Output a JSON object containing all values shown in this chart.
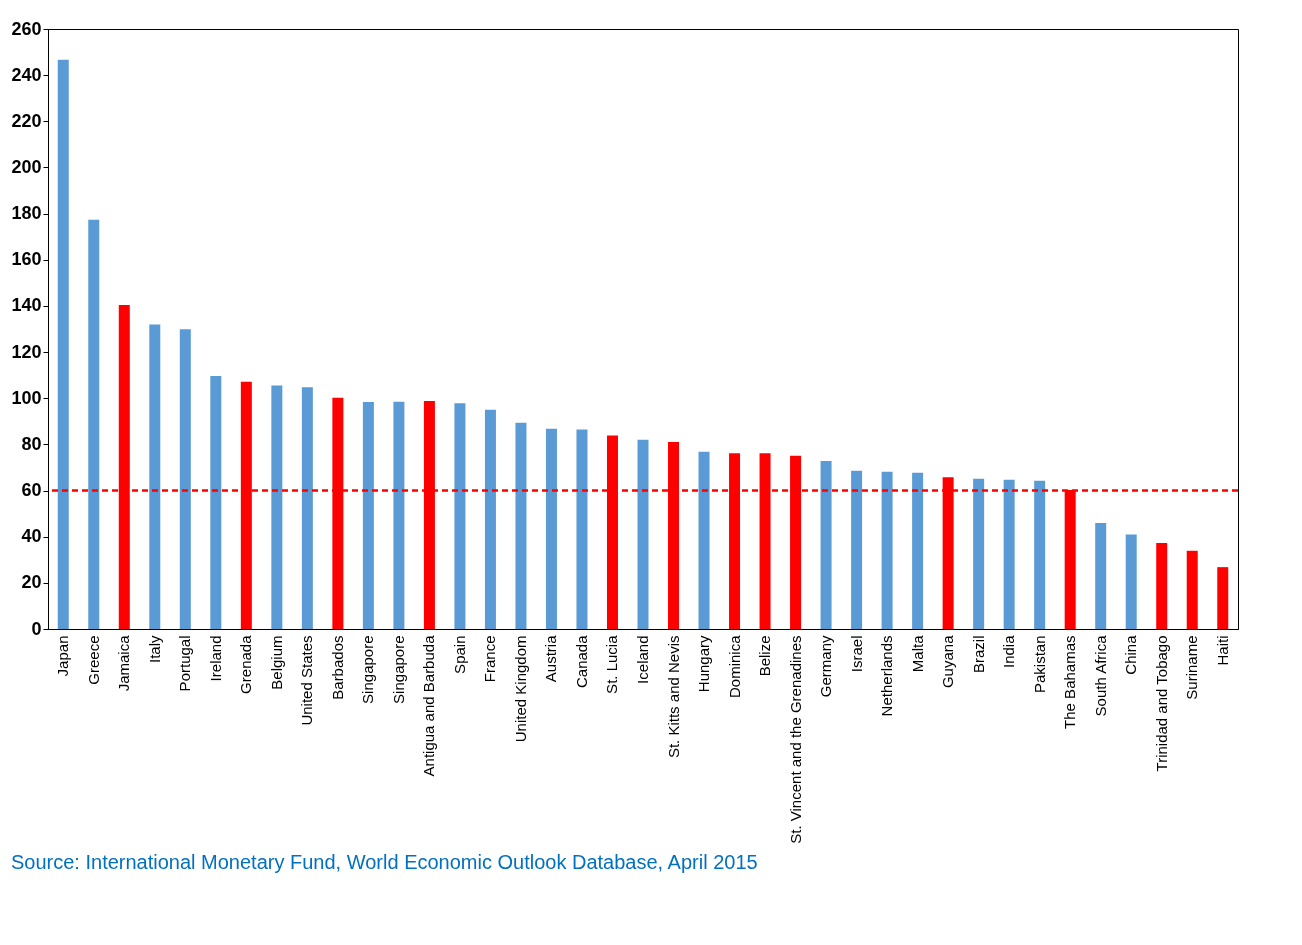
{
  "chart_data": {
    "type": "bar",
    "categories": [
      "Japan",
      "Greece",
      "Jamaica",
      "Italy",
      "Portugal",
      "Ireland",
      "Grenada",
      "Belgium",
      "United States",
      "Barbados",
      "Singapore",
      "Singapore",
      "Antigua and Barbuda",
      "Spain",
      "France",
      "United Kingdom",
      "Austria",
      "Canada",
      "St. Lucia",
      "Iceland",
      "St. Kitts and Nevis",
      "Hungary",
      "Dominica",
      "Belize",
      "St. Vincent and the Grenadines",
      "Germany",
      "Israel",
      "Netherlands",
      "Malta",
      "Guyana",
      "Brazil",
      "India",
      "Pakistan",
      "The Bahamas",
      "South Africa",
      "China",
      "Trinidad and Tobago",
      "Suriname",
      "Haiti"
    ],
    "values": [
      246.7,
      177.3,
      140.4,
      132,
      129.9,
      109.6,
      107.1,
      105.5,
      104.8,
      100.2,
      98.4,
      98.5,
      98.8,
      97.8,
      95,
      89.4,
      86.8,
      86.4,
      83.8,
      82,
      81,
      76.8,
      76.2,
      76.2,
      75.1,
      72.8,
      68.6,
      68.1,
      67.7,
      65.8,
      65.1,
      64.7,
      64.2,
      60.2,
      45.9,
      40.9,
      37.3,
      33.9,
      26.8
    ],
    "colors": [
      "#5b9bd5",
      "#5b9bd5",
      "#ff0000",
      "#5b9bd5",
      "#5b9bd5",
      "#5b9bd5",
      "#ff0000",
      "#5b9bd5",
      "#5b9bd5",
      "#ff0000",
      "#5b9bd5",
      "#5b9bd5",
      "#ff0000",
      "#5b9bd5",
      "#5b9bd5",
      "#5b9bd5",
      "#5b9bd5",
      "#5b9bd5",
      "#ff0000",
      "#5b9bd5",
      "#ff0000",
      "#5b9bd5",
      "#ff0000",
      "#ff0000",
      "#ff0000",
      "#5b9bd5",
      "#5b9bd5",
      "#5b9bd5",
      "#5b9bd5",
      "#ff0000",
      "#5b9bd5",
      "#5b9bd5",
      "#5b9bd5",
      "#ff0000",
      "#5b9bd5",
      "#5b9bd5",
      "#ff0000",
      "#ff0000",
      "#ff0000"
    ],
    "ylim": [
      0,
      260
    ],
    "yticks": [
      0,
      20,
      40,
      60,
      80,
      100,
      120,
      140,
      160,
      180,
      200,
      220,
      240,
      260
    ],
    "grid": false,
    "ref_lines": [
      {
        "axis": "y",
        "value": 60,
        "color": "#ff0000",
        "line_style": "dashed"
      }
    ],
    "annotations": [
      "Source: International Monetary Fund, World Economic Outlook Database, April 2015"
    ]
  }
}
